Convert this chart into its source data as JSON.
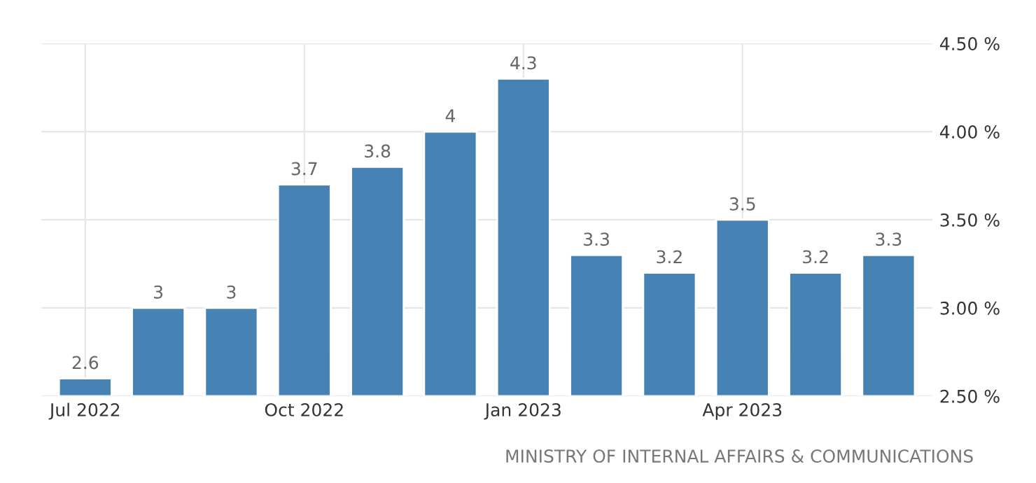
{
  "chart_data": {
    "type": "bar",
    "categories": [
      "Jul 2022",
      null,
      null,
      "Oct 2022",
      null,
      null,
      "Jan 2023",
      null,
      null,
      "Apr 2023",
      null,
      null
    ],
    "values": [
      2.6,
      3,
      3,
      3.7,
      3.8,
      4,
      4.3,
      3.3,
      3.2,
      3.5,
      3.2,
      3.3
    ],
    "color": "#4682b4",
    "ylim": [
      2.5,
      4.5
    ],
    "yticks": [
      {
        "value": 2.5,
        "label": "2.50 %"
      },
      {
        "value": 3.0,
        "label": "3.00 %"
      },
      {
        "value": 3.5,
        "label": "3.50 %"
      },
      {
        "value": 4.0,
        "label": "4.00 %"
      },
      {
        "value": 4.5,
        "label": "4.50 %"
      }
    ],
    "grid": true,
    "data_labels": true,
    "annotations": [
      "MINISTRY OF INTERNAL AFFAIRS & COMMUNICATIONS"
    ]
  }
}
